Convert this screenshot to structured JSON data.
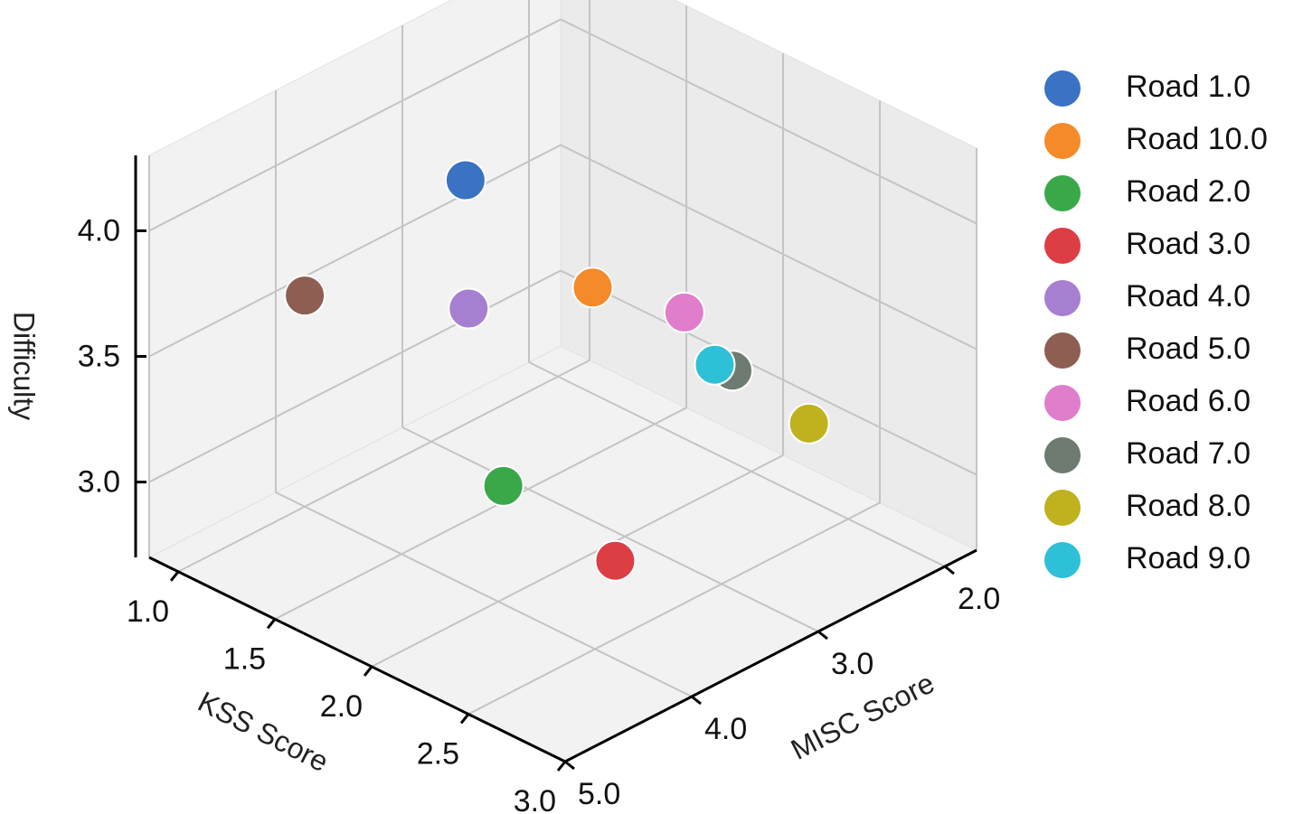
{
  "chart_data": {
    "type": "scatter3d",
    "xlabel": "KSS Score",
    "ylabel": "MISC Score",
    "zlabel": "Difficulty",
    "xlim": [
      0.85,
      3.0
    ],
    "ylim": [
      5.0,
      1.75
    ],
    "zlim": [
      2.7,
      4.3
    ],
    "xticks": [
      {
        "value": 1,
        "label": "1.0"
      },
      1.5,
      {
        "value": 2,
        "label": "2.0"
      },
      2.5,
      {
        "value": 3,
        "label": "3.0"
      }
    ],
    "yticks": [
      {
        "value": 2,
        "label": "2.0"
      },
      {
        "value": 3,
        "label": "3.0"
      },
      {
        "value": 4,
        "label": "4.0"
      },
      {
        "value": 5,
        "label": "5.0"
      }
    ],
    "zticks": [
      {
        "value": 3,
        "label": "3.0"
      },
      3.5,
      {
        "value": 4,
        "label": "4.0"
      }
    ],
    "grid": true,
    "series": [
      {
        "name": "Road 1.0",
        "color": "#3a72c4",
        "x": [
          1.0
        ],
        "y": [
          2.73
        ],
        "z": [
          3.67
        ]
      },
      {
        "name": "Road 10.0",
        "color": "#f58a2a",
        "x": [
          1.5
        ],
        "y": [
          2.49
        ],
        "z": [
          3.37
        ]
      },
      {
        "name": "Road 2.0",
        "color": "#3aa848",
        "x": [
          2.0
        ],
        "y": [
          3.96
        ],
        "z": [
          3.15
        ]
      },
      {
        "name": "Road 3.0",
        "color": "#dc3e44",
        "x": [
          2.5
        ],
        "y": [
          3.84
        ],
        "z": [
          3.01
        ]
      },
      {
        "name": "Road 4.0",
        "color": "#a77fd0",
        "x": [
          1.5
        ],
        "y": [
          3.47
        ],
        "z": [
          3.54
        ]
      },
      {
        "name": "Road 5.0",
        "color": "#8e5e52",
        "x": [
          1.0
        ],
        "y": [
          4.0
        ],
        "z": [
          3.54
        ]
      },
      {
        "name": "Road 6.0",
        "color": "#e07ecb",
        "x": [
          2.0
        ],
        "y": [
          2.53
        ],
        "z": [
          3.47
        ]
      },
      {
        "name": "Road 7.0",
        "color": "#6e7b70",
        "x": [
          2.0
        ],
        "y": [
          2.15
        ],
        "z": [
          3.14
        ]
      },
      {
        "name": "Road 8.0",
        "color": "#bfb21e",
        "x": [
          2.5
        ],
        "y": [
          2.31
        ],
        "z": [
          3.16
        ]
      },
      {
        "name": "Road 9.0",
        "color": "#2ec0d6",
        "x": [
          2.0
        ],
        "y": [
          2.29
        ],
        "z": [
          3.2
        ]
      }
    ]
  }
}
